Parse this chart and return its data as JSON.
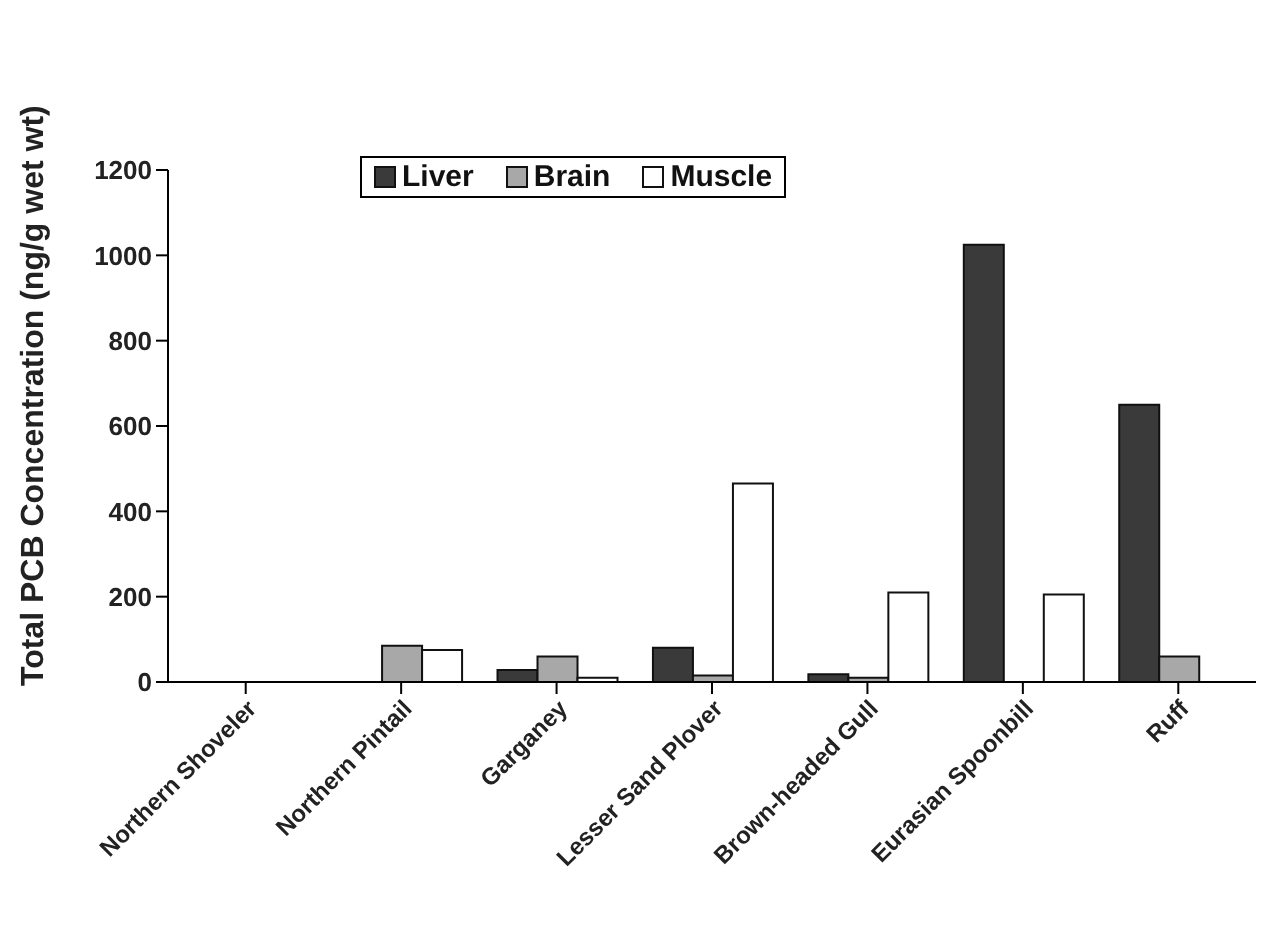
{
  "chart_data": {
    "type": "bar",
    "ylabel": "Total PCB Concentration (ng/g wet wt)",
    "categories": [
      "Northern Shoveler",
      "Northern Pintail",
      "Garganey",
      "Lesser Sand Plover",
      "Brown-headed Gull",
      "Eurasian Spoonbill",
      "Ruff"
    ],
    "series": [
      {
        "name": "Liver",
        "color": "#3a3a3a",
        "values": [
          null,
          0,
          28,
          80,
          18,
          1025,
          650
        ]
      },
      {
        "name": "Brain",
        "color": "#a8a8a8",
        "values": [
          null,
          85,
          60,
          15,
          10,
          0,
          60
        ]
      },
      {
        "name": "Muscle",
        "color": "#ffffff",
        "values": [
          0,
          75,
          10,
          465,
          210,
          205,
          0
        ]
      }
    ],
    "ylim": [
      0,
      1200
    ],
    "yticks": [
      0,
      200,
      400,
      600,
      800,
      1000,
      1200
    ],
    "grid": false,
    "legend": "top"
  }
}
